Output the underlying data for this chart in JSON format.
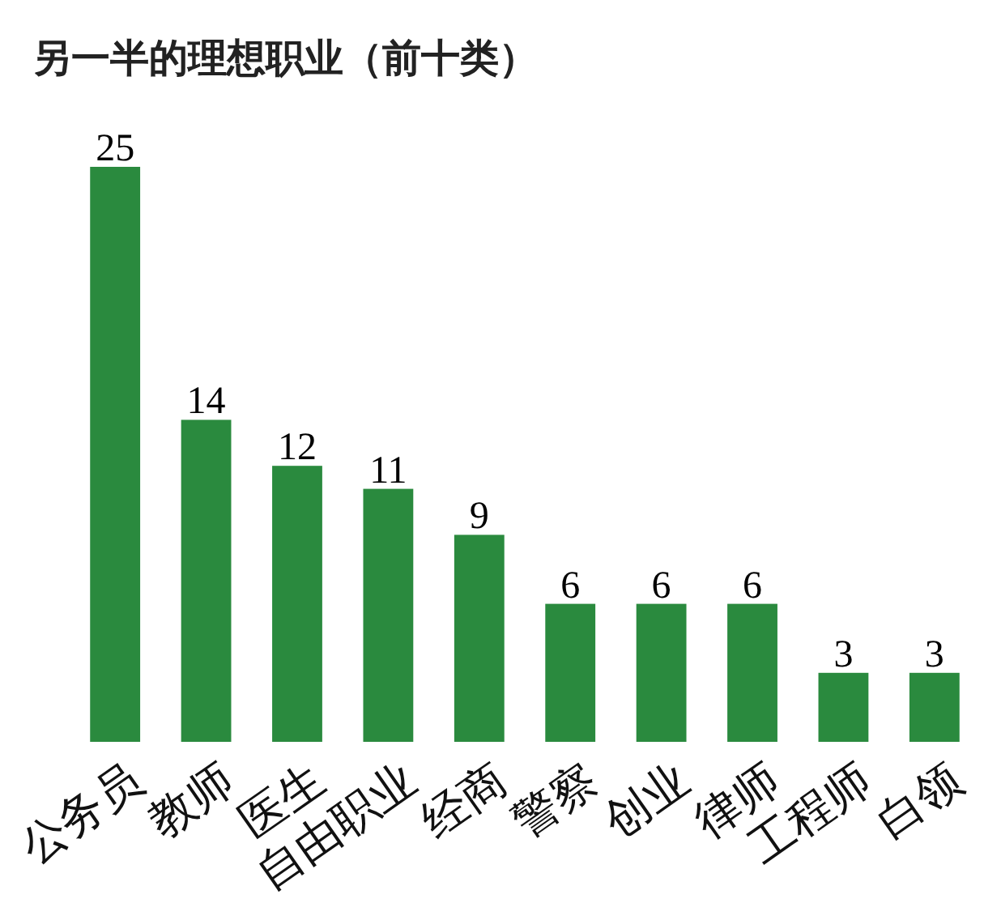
{
  "chart_data": {
    "type": "bar",
    "title": "另一半的理想职业（前十类）",
    "categories": [
      "公务员",
      "教师",
      "医生",
      "自由职业",
      "经商",
      "警察",
      "创业",
      "律师",
      "工程师",
      "白领"
    ],
    "values": [
      25,
      14,
      12,
      11,
      9,
      6,
      6,
      6,
      3,
      3
    ],
    "color": "#2a8a3e",
    "data_labels": true
  }
}
